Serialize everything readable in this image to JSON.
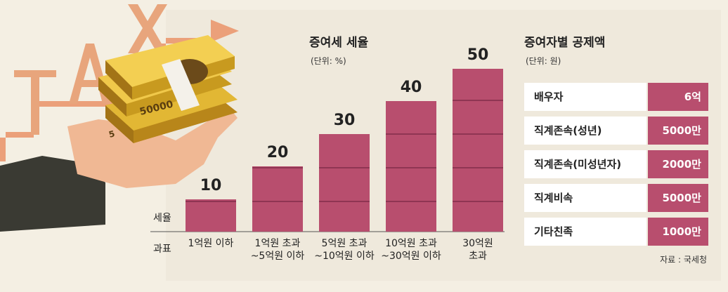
{
  "chart_data": {
    "type": "bar",
    "title": "증여세 세율",
    "unit": "(단위: %)",
    "ylabel": "세율",
    "xlabel": "과표",
    "categories": [
      [
        "1억원 이하"
      ],
      [
        "1억원 초과",
        "~5억원 이하"
      ],
      [
        "5억원 초과",
        "~10억원 이하"
      ],
      [
        "10억원 초과",
        "~30억원 이하"
      ],
      [
        "30억원",
        "초과"
      ]
    ],
    "values": [
      10,
      20,
      30,
      40,
      50
    ],
    "ylim": [
      0,
      50
    ]
  },
  "deduction": {
    "title": "증여자별 공제액",
    "unit": "(단위: 원)",
    "rows": [
      {
        "label": "배우자",
        "value": "6억"
      },
      {
        "label": "직계존속(성년)",
        "value": "5000만"
      },
      {
        "label": "직계존속(미성년자)",
        "value": "2000만"
      },
      {
        "label": "직계비속",
        "value": "5000만"
      },
      {
        "label": "기타친족",
        "value": "1000만"
      }
    ],
    "source": "자료 : 국세청"
  },
  "illustration": {
    "word": "TAX",
    "banknote": "50000",
    "banknote_side": "5"
  },
  "colors": {
    "bar": "#b84e6e",
    "background": "#f4efe3",
    "accent": "#e8a57c"
  }
}
